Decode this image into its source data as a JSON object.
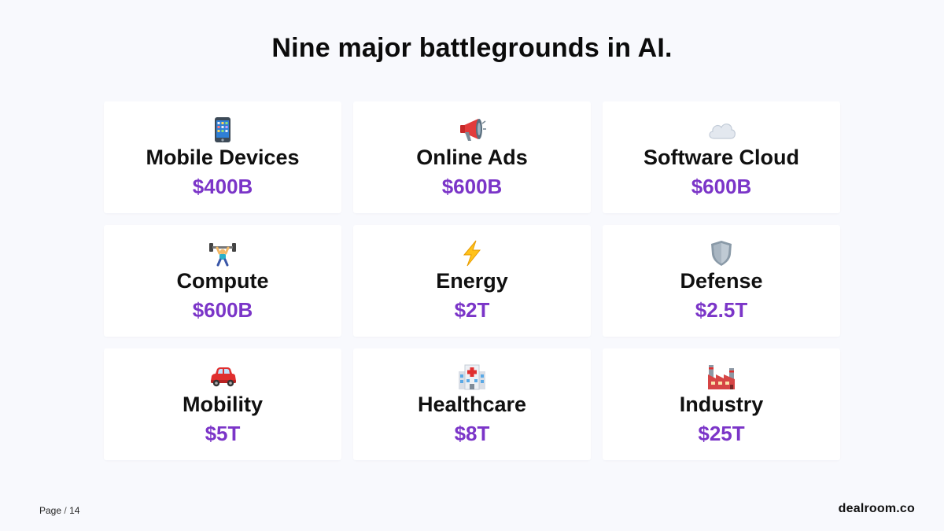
{
  "title": "Nine major battlegrounds in AI.",
  "accent_color": "#7b35c8",
  "cards": [
    {
      "icon": "mobile-phone-icon",
      "label": "Mobile Devices",
      "value": "$400B"
    },
    {
      "icon": "megaphone-icon",
      "label": "Online Ads",
      "value": "$600B"
    },
    {
      "icon": "cloud-icon",
      "label": "Software Cloud",
      "value": "$600B"
    },
    {
      "icon": "weightlifter-icon",
      "label": "Compute",
      "value": "$600B"
    },
    {
      "icon": "lightning-icon",
      "label": "Energy",
      "value": "$2T"
    },
    {
      "icon": "shield-icon",
      "label": "Defense",
      "value": "$2.5T"
    },
    {
      "icon": "car-icon",
      "label": "Mobility",
      "value": "$5T"
    },
    {
      "icon": "hospital-icon",
      "label": "Healthcare",
      "value": "$8T"
    },
    {
      "icon": "factory-icon",
      "label": "Industry",
      "value": "$25T"
    }
  ],
  "footer": {
    "page_label": "Page",
    "page_separator": "/",
    "page_number": "14",
    "brand": "dealroom.co"
  }
}
